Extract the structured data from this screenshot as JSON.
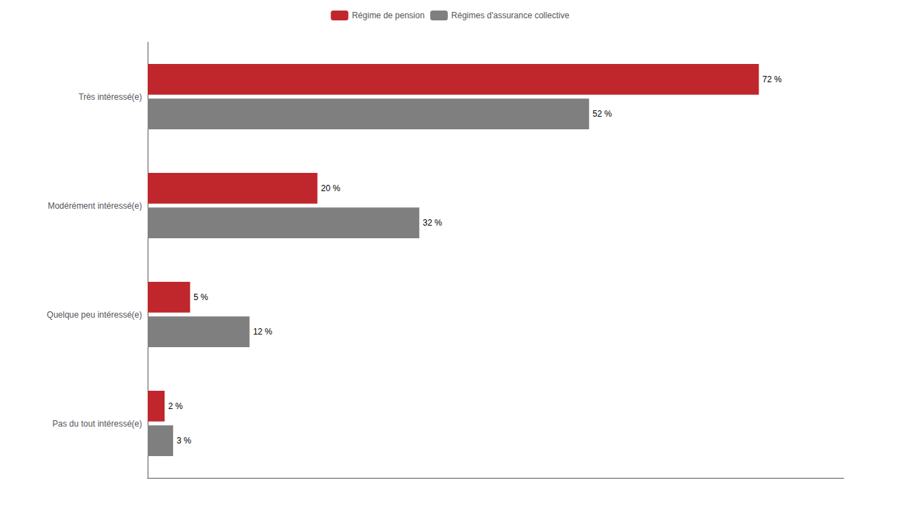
{
  "chart_data": {
    "type": "bar",
    "orientation": "horizontal",
    "categories": [
      "Très intéressé(e)",
      "Modérément intéressé(e)",
      "Quelque peu intéressé(e)",
      "Pas du tout intéressé(e)"
    ],
    "series": [
      {
        "name": "Régime de pension",
        "color": "#C0272D",
        "values": [
          72,
          20,
          5,
          2
        ],
        "value_labels": [
          "72 %",
          "20 %",
          "5 %",
          "2 %"
        ]
      },
      {
        "name": "Régimes d'assurance collective",
        "color": "#7F7F7F",
        "values": [
          52,
          32,
          12,
          3
        ],
        "value_labels": [
          "52 %",
          "32 %",
          "12 %",
          "3 %"
        ]
      }
    ],
    "xlim": [
      0,
      82
    ],
    "data_labels": true,
    "tick_labels": "y",
    "grid": false,
    "legend": "top"
  }
}
